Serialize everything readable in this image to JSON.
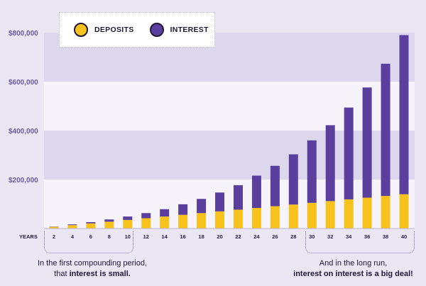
{
  "colors": {
    "deposits": "#f7c21b",
    "interest": "#5a3f9e",
    "band_dark": "#dcd7ec",
    "band_light": "#f6f4fa"
  },
  "legend": {
    "deposits_label": "DEPOSITS",
    "interest_label": "INTEREST"
  },
  "annotations": {
    "left_line1": "In the first compounding period,",
    "left_line2_plain": "that ",
    "left_line2_bold": "interest is small.",
    "right_line1": "And in the long run,",
    "right_line2_bold": "interest on interest is a big deal!"
  },
  "chart_data": {
    "type": "bar",
    "stacked": true,
    "xlabel": "YEARS",
    "categories": [
      "2",
      "4",
      "6",
      "8",
      "10",
      "12",
      "14",
      "16",
      "18",
      "20",
      "22",
      "24",
      "26",
      "28",
      "30",
      "32",
      "34",
      "36",
      "38",
      "40"
    ],
    "series": [
      {
        "name": "DEPOSITS",
        "values": [
          7000,
          14000,
          21000,
          28000,
          35000,
          42000,
          49000,
          56000,
          63000,
          70000,
          77000,
          84000,
          91000,
          98000,
          105000,
          112000,
          119000,
          126000,
          133000,
          140000
        ]
      },
      {
        "name": "INTEREST",
        "values": [
          1000,
          3000,
          5000,
          9000,
          14000,
          21000,
          30000,
          43000,
          58000,
          77000,
          100000,
          132000,
          165000,
          205000,
          255000,
          310000,
          375000,
          450000,
          540000,
          650000
        ]
      }
    ],
    "ylim": [
      0,
      800000
    ],
    "yticks": [
      {
        "value": 200000,
        "label": "$200,000"
      },
      {
        "value": 400000,
        "label": "$400,000"
      },
      {
        "value": 600000,
        "label": "$600,000"
      },
      {
        "value": 800000,
        "label": "$800,000"
      }
    ],
    "grid": false
  }
}
